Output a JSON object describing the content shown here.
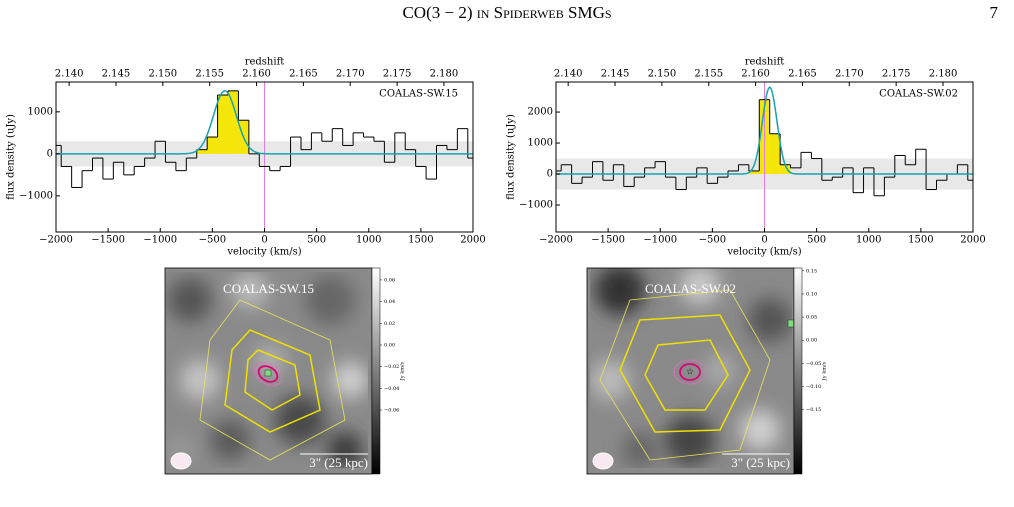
{
  "header": {
    "title": "CO(3 − 2) in Spiderweb SMGs",
    "page": "7"
  },
  "chart_data": [
    {
      "type": "step",
      "annotation": "COALAS-SW.15",
      "annotation_color": "#1010d0",
      "xlabel": "velocity (km/s)",
      "ylabel": "flux density (uJy)",
      "x2label": "redshift",
      "x": [
        -2000,
        -1900,
        -1800,
        -1700,
        -1600,
        -1500,
        -1400,
        -1300,
        -1200,
        -1100,
        -1000,
        -900,
        -800,
        -700,
        -600,
        -500,
        -400,
        -300,
        -200,
        -100,
        0,
        100,
        200,
        300,
        400,
        500,
        600,
        700,
        800,
        900,
        1000,
        1100,
        1200,
        1300,
        1400,
        1500,
        1600,
        1700,
        1800,
        1900,
        2000
      ],
      "values": [
        200,
        -300,
        -800,
        -400,
        -100,
        -600,
        -200,
        -500,
        -300,
        -100,
        300,
        -200,
        -400,
        -100,
        100,
        400,
        1400,
        1500,
        800,
        0,
        -300,
        -400,
        -300,
        400,
        100,
        500,
        300,
        600,
        200,
        500,
        400,
        300,
        -200,
        500,
        100,
        -300,
        -600,
        200,
        100,
        600,
        -100
      ],
      "color": "#000000",
      "fit": {
        "center": -380,
        "amplitude": 1500,
        "sigma": 110,
        "color": "#17a2b0"
      },
      "highlight_xlim": [
        -600,
        -200
      ],
      "highlight_color": "#f5e60a",
      "band_ylim": [
        -300,
        300
      ],
      "reference_x": 0,
      "xlim": [
        -2000,
        2000
      ],
      "xticks": [
        {
          "value": -2000,
          "label": "−2000"
        },
        {
          "value": -1500,
          "label": "−1500"
        },
        {
          "value": -1000,
          "label": "−1000"
        },
        {
          "value": -500,
          "label": "−500"
        },
        0,
        500,
        1000,
        1500,
        2000
      ],
      "ylim": [
        -1860,
        1710
      ],
      "yticks": [
        {
          "value": -1000,
          "label": "−1000"
        },
        0,
        1000
      ],
      "x2lim": [
        2.1386,
        2.1831
      ],
      "x2ticks": [
        {
          "value": 2.14,
          "label": "2.140"
        },
        2.145,
        {
          "value": 2.15,
          "label": "2.150"
        },
        2.155,
        {
          "value": 2.16,
          "label": "2.160"
        },
        2.165,
        {
          "value": 2.17,
          "label": "2.170"
        },
        2.175,
        {
          "value": 2.18,
          "label": "2.180"
        }
      ]
    },
    {
      "type": "step",
      "annotation": "COALAS-SW.02",
      "annotation_color": "#1010d0",
      "xlabel": "velocity (km/s)",
      "ylabel": "flux density (uJy)",
      "x2label": "redshift",
      "x": [
        -2000,
        -1900,
        -1800,
        -1700,
        -1600,
        -1500,
        -1400,
        -1300,
        -1200,
        -1100,
        -1000,
        -900,
        -800,
        -700,
        -600,
        -500,
        -400,
        -300,
        -200,
        -100,
        0,
        100,
        200,
        300,
        400,
        500,
        600,
        700,
        800,
        900,
        1000,
        1100,
        1200,
        1300,
        1400,
        1500,
        1600,
        1700,
        1800,
        1900,
        2000
      ],
      "values": [
        100,
        300,
        -300,
        -100,
        400,
        -200,
        300,
        -400,
        -100,
        200,
        400,
        -100,
        -500,
        -100,
        200,
        -300,
        -100,
        100,
        300,
        100,
        2400,
        1300,
        300,
        200,
        700,
        500,
        -200,
        -100,
        200,
        -600,
        200,
        -700,
        -100,
        600,
        300,
        800,
        -500,
        -200,
        0,
        300,
        -200
      ],
      "color": "#000000",
      "fit": {
        "center": 50,
        "amplitude": 2800,
        "sigma": 70,
        "color": "#17a2b0"
      },
      "highlight_xlim": [
        -100,
        200
      ],
      "highlight_color": "#f5e60a",
      "band_ylim": [
        -500,
        500
      ],
      "reference_x": 0,
      "xlim": [
        -2000,
        2000
      ],
      "xticks": [
        {
          "value": -2000,
          "label": "−2000"
        },
        {
          "value": -1500,
          "label": "−1500"
        },
        {
          "value": -1000,
          "label": "−1000"
        },
        {
          "value": -500,
          "label": "−500"
        },
        0,
        500,
        1000,
        1500,
        2000
      ],
      "ylim": [
        -1870,
        2970
      ],
      "yticks": [
        {
          "value": -1000,
          "label": "−1000"
        },
        0,
        1000,
        2000
      ],
      "x2lim": [
        2.1387,
        2.1832
      ],
      "x2ticks": [
        {
          "value": 2.14,
          "label": "2.140"
        },
        2.145,
        {
          "value": 2.15,
          "label": "2.150"
        },
        2.155,
        {
          "value": 2.16,
          "label": "2.160"
        },
        2.165,
        {
          "value": 2.17,
          "label": "2.170"
        },
        2.175,
        {
          "value": 2.18,
          "label": "2.180"
        }
      ]
    }
  ],
  "images": [
    {
      "label": "COALAS-SW.15",
      "scale_label": "3\" (25 kpc)",
      "colorbar": {
        "label": "Jy km/s",
        "lim": [
          -0.119,
          0.071
        ],
        "ticks": [
          0.06,
          0.04,
          0.02,
          {
            "value": 0,
            "label": "0.00"
          },
          {
            "value": -0.02,
            "label": "−0.02"
          },
          {
            "value": -0.04,
            "label": "−0.04"
          },
          {
            "value": -0.06,
            "label": "−0.06"
          }
        ]
      }
    },
    {
      "label": "COALAS-SW.02",
      "scale_label": "3\" (25 kpc)",
      "colorbar": {
        "label": "Jy km/s",
        "lim": [
          -0.289,
          0.156
        ],
        "ticks": [
          0.15,
          {
            "value": 0.1,
            "label": "0.10"
          },
          0.05,
          {
            "value": 0,
            "label": "0.00"
          },
          {
            "value": -0.05,
            "label": "−0.05"
          },
          {
            "value": -0.1,
            "label": "−0.10"
          },
          {
            "value": -0.15,
            "label": "−0.15"
          }
        ]
      }
    }
  ]
}
